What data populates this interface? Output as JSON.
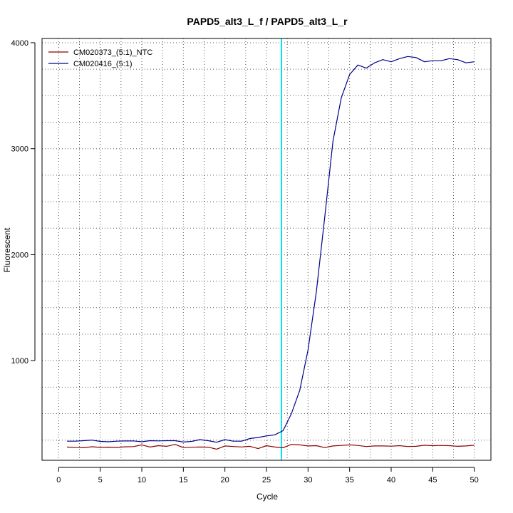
{
  "chart_data": {
    "type": "line",
    "title": "PAPD5_alt3_L_f / PAPD5_alt3_L_r",
    "xlabel": "Cycle",
    "ylabel": "Fluorescent",
    "xlim": [
      -2,
      52
    ],
    "ylim": [
      60,
      4040
    ],
    "x_ticks": [
      0,
      5,
      10,
      15,
      20,
      25,
      30,
      35,
      40,
      45,
      50
    ],
    "x_tick_labels": [
      "0",
      "5",
      "10",
      "15",
      "20",
      "25",
      "30",
      "35",
      "40",
      "45",
      "50"
    ],
    "y_ticks": [
      1000,
      2000,
      3000,
      4000
    ],
    "y_tick_labels": [
      "1000",
      "2000",
      "3000",
      "4000"
    ],
    "grid": "dotted",
    "legend_position": "top-left",
    "threshold_line_x": 26.8,
    "threshold_color": "#00e5ee",
    "x": [
      1,
      2,
      3,
      4,
      5,
      6,
      7,
      8,
      9,
      10,
      11,
      12,
      13,
      14,
      15,
      16,
      17,
      18,
      19,
      20,
      21,
      22,
      23,
      24,
      25,
      26,
      27,
      28,
      29,
      30,
      31,
      32,
      33,
      34,
      35,
      36,
      37,
      38,
      39,
      40,
      41,
      42,
      43,
      44,
      45,
      46,
      47,
      48,
      49,
      50
    ],
    "series": [
      {
        "name": "CM020373_(5:1)_NTC",
        "color": "#8b0000",
        "values": [
          185,
          180,
          178,
          188,
          182,
          184,
          182,
          187,
          189,
          205,
          185,
          198,
          192,
          210,
          180,
          183,
          185,
          184,
          165,
          195,
          190,
          186,
          192,
          170,
          198,
          185,
          178,
          210,
          205,
          195,
          198,
          180,
          195,
          200,
          205,
          200,
          190,
          195,
          195,
          193,
          198,
          190,
          192,
          202,
          198,
          200,
          198,
          192,
          195,
          202
        ]
      },
      {
        "name": "CM020416_(5:1)",
        "color": "#00008b",
        "values": [
          240,
          240,
          245,
          250,
          238,
          235,
          240,
          242,
          243,
          235,
          245,
          243,
          245,
          245,
          232,
          238,
          255,
          245,
          230,
          255,
          240,
          240,
          265,
          275,
          290,
          300,
          340,
          500,
          720,
          1100,
          1650,
          2350,
          3070,
          3480,
          3700,
          3790,
          3760,
          3810,
          3840,
          3820,
          3850,
          3870,
          3860,
          3820,
          3830,
          3830,
          3850,
          3840,
          3810,
          3820
        ]
      }
    ]
  }
}
